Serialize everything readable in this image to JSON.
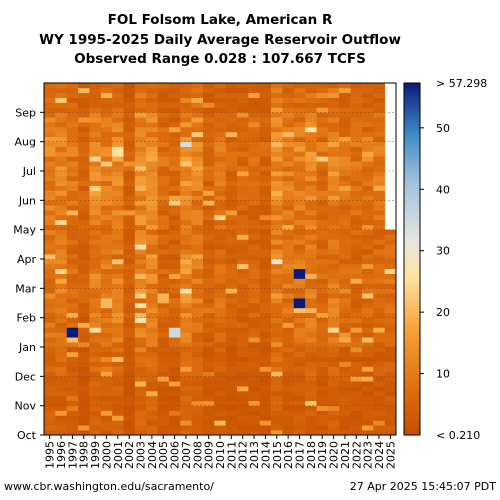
{
  "chart_data": {
    "type": "heatmap",
    "title": [
      "FOL Folsom Lake, American R",
      "WY 1995-2025 Daily Average Reservoir Outflow",
      "Observed Range 0.028 : 107.667 TCFS"
    ],
    "x_categories": [
      "1995",
      "1996",
      "1997",
      "1998",
      "1999",
      "2000",
      "2001",
      "2002",
      "2003",
      "2004",
      "2005",
      "2006",
      "2007",
      "2008",
      "2009",
      "2010",
      "2011",
      "2012",
      "2013",
      "2014",
      "2015",
      "2016",
      "2017",
      "2018",
      "2019",
      "2020",
      "2021",
      "2022",
      "2023",
      "2024",
      "2025"
    ],
    "y_ticks": [
      "Oct",
      "Nov",
      "Dec",
      "Jan",
      "Feb",
      "Mar",
      "Apr",
      "May",
      "Jun",
      "Jul",
      "Aug",
      "Sep"
    ],
    "colorbar": {
      "ticks": [
        10,
        20,
        30,
        40,
        50
      ],
      "min_label": "< 0.210",
      "max_label": "> 57.298",
      "range": [
        0,
        57.298
      ]
    },
    "colors": {
      "low": "#c44e00",
      "mid": "#ffd98f",
      "high": "#0a1a7a"
    },
    "approx_typical_outflow_tcfs_by_month": {
      "months": [
        "Oct",
        "Nov",
        "Dec",
        "Jan",
        "Feb",
        "Mar",
        "Apr",
        "May",
        "Jun",
        "Jul",
        "Aug",
        "Sep"
      ],
      "values": [
        3,
        3,
        4,
        6,
        7,
        7,
        6,
        7,
        8,
        9,
        7,
        5
      ]
    },
    "peak_events": [
      {
        "year": "1997",
        "month": "Jan",
        "value": "> 57.298"
      },
      {
        "year": "2017",
        "month": "Feb",
        "value": "> 57.298"
      },
      {
        "year": "2017",
        "month": "Mar",
        "value": "> 57.298"
      },
      {
        "year": "2006",
        "month": "Jan",
        "value": "≈ 35"
      },
      {
        "year": "2000",
        "month": "Feb",
        "value": "≈ 20"
      }
    ],
    "data_end": "2025 (partial, through Apr)"
  },
  "footer": {
    "url": "www.cbr.washington.edu/sacramento/",
    "timestamp": "27 Apr 2025 15:45:07 PDT"
  }
}
